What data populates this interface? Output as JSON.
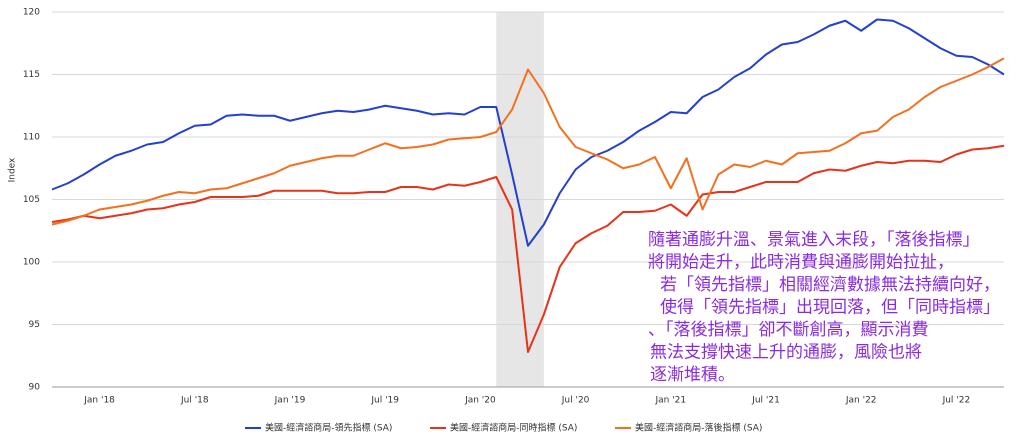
{
  "chart_data": {
    "type": "line",
    "y_label": "Index",
    "categories": [
      null,
      null,
      null,
      "Jan '18",
      null,
      null,
      null,
      null,
      null,
      "Jul '18",
      null,
      null,
      null,
      null,
      null,
      "Jan '19",
      null,
      null,
      null,
      null,
      null,
      "Jul '19",
      null,
      null,
      null,
      null,
      null,
      "Jan '20",
      null,
      null,
      null,
      null,
      null,
      "Jul '20",
      null,
      null,
      null,
      null,
      null,
      "Jan '21",
      null,
      null,
      null,
      null,
      null,
      "Jul '21",
      null,
      null,
      null,
      null,
      null,
      "Jan '22",
      null,
      null,
      null,
      null,
      null,
      "Jul '22",
      null,
      null,
      null
    ],
    "series": [
      {
        "name": "美國-經濟諮商局-領先指標 (SA)",
        "color": "#2340d0",
        "values": [
          105.8,
          106.3,
          107.0,
          107.8,
          108.5,
          108.9,
          109.4,
          109.6,
          110.3,
          110.9,
          111.0,
          111.7,
          111.8,
          111.7,
          111.7,
          111.3,
          111.6,
          111.9,
          112.1,
          112.0,
          112.2,
          112.5,
          112.3,
          112.1,
          111.8,
          111.9,
          111.8,
          112.4,
          112.4,
          107.0,
          101.3,
          103.0,
          105.5,
          107.4,
          108.4,
          108.9,
          109.6,
          110.5,
          111.2,
          112.0,
          111.9,
          113.2,
          113.8,
          114.8,
          115.5,
          116.6,
          117.4,
          117.6,
          118.2,
          118.9,
          119.3,
          118.5,
          119.4,
          119.3,
          118.7,
          117.9,
          117.1,
          116.5,
          116.4,
          115.8,
          115.0
        ]
      },
      {
        "name": "美國-經濟諮商局-同時指標 (SA)",
        "color": "#e8321a",
        "values": [
          103.2,
          103.4,
          103.7,
          103.5,
          103.7,
          103.9,
          104.2,
          104.3,
          104.6,
          104.8,
          105.2,
          105.2,
          105.2,
          105.3,
          105.7,
          105.7,
          105.7,
          105.7,
          105.5,
          105.5,
          105.6,
          105.6,
          106.0,
          106.0,
          105.8,
          106.2,
          106.1,
          106.4,
          106.8,
          104.2,
          92.8,
          95.8,
          99.6,
          101.5,
          102.3,
          102.9,
          104.0,
          104.0,
          104.1,
          104.6,
          103.7,
          105.4,
          105.6,
          105.6,
          106.0,
          106.4,
          106.4,
          106.4,
          107.1,
          107.4,
          107.3,
          107.7,
          108.0,
          107.9,
          108.1,
          108.1,
          108.0,
          108.6,
          109.0,
          109.1,
          109.3
        ]
      },
      {
        "name": "美國-經濟諮商局-落後指標 (SA)",
        "color": "#f4701e",
        "values": [
          103.0,
          103.3,
          103.7,
          104.2,
          104.4,
          104.6,
          104.9,
          105.3,
          105.6,
          105.5,
          105.8,
          105.9,
          106.3,
          106.7,
          107.1,
          107.7,
          108.0,
          108.3,
          108.5,
          108.5,
          109.0,
          109.5,
          109.1,
          109.2,
          109.4,
          109.8,
          109.9,
          110.0,
          110.4,
          112.2,
          115.4,
          113.5,
          110.8,
          109.2,
          108.7,
          108.2,
          107.5,
          107.8,
          108.4,
          105.9,
          108.3,
          104.2,
          107.0,
          107.8,
          107.6,
          108.1,
          107.8,
          108.7,
          108.8,
          108.9,
          109.5,
          110.3,
          110.5,
          111.6,
          112.2,
          113.2,
          114.0,
          114.5,
          115.0,
          115.6,
          116.3
        ]
      }
    ],
    "ylim": [
      90,
      120
    ],
    "yticks": [
      90,
      95,
      100,
      105,
      110,
      115,
      120
    ],
    "grid": true,
    "highlight_range": [
      28,
      31
    ],
    "annotation": [
      "隨著通膨升溫、景氣進入末段，「落後指標」",
      "將開始走升，此時消費與通膨開始拉扯，",
      "若「領先指標」相關經濟數據無法持續向好，",
      "使得「領先指標」出現回落，但「同時指標」",
      "、「落後指標」卻不斷創高，顯示消費",
      "無法支撐快速上升的通膨，風險也將",
      "逐漸堆積。"
    ]
  }
}
